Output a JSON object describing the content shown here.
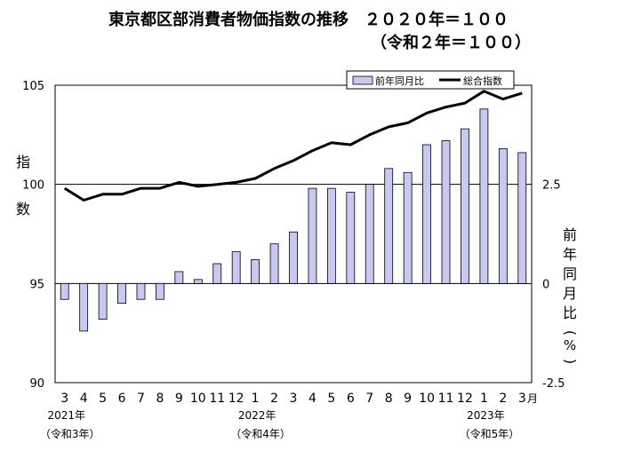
{
  "title": "東京都区部消費者物価指数の推移　２０２０年＝１００",
  "subtitle": "（令和２年＝１００）",
  "legend": {
    "bar_label": "前年同月比",
    "line_label": "総合指数",
    "bar_color": "#c8c8f0",
    "line_color": "#000000"
  },
  "left_axis_label": "指数",
  "right_axis_label": "前年同月比（%）",
  "month_unit": "月",
  "year_labels": [
    {
      "year": "2021年",
      "era": "（令和3年）"
    },
    {
      "year": "2022年",
      "era": "（令和4年）"
    },
    {
      "year": "2023年",
      "era": "（令和5年）"
    }
  ],
  "chart_data": {
    "type": "bar+line",
    "categories": [
      "3",
      "4",
      "5",
      "6",
      "7",
      "8",
      "9",
      "10",
      "11",
      "12",
      "1",
      "2",
      "3",
      "4",
      "5",
      "6",
      "7",
      "8",
      "9",
      "10",
      "11",
      "12",
      "1",
      "2",
      "3"
    ],
    "left_axis": {
      "min": 90,
      "max": 105,
      "ticks": [
        "90",
        "95",
        "100",
        "105"
      ]
    },
    "right_axis": {
      "min": -2.5,
      "max": 5.0,
      "ticks": [
        "-2.5",
        "0",
        "2.5"
      ]
    },
    "series": [
      {
        "name": "前年同月比",
        "type": "bar",
        "axis": "right",
        "values": [
          -0.4,
          -1.2,
          -0.9,
          -0.5,
          -0.4,
          -0.4,
          0.3,
          0.1,
          0.5,
          0.8,
          0.6,
          1.0,
          1.3,
          2.4,
          2.4,
          2.3,
          2.5,
          2.9,
          2.8,
          3.5,
          3.6,
          3.9,
          4.4,
          3.4,
          3.3
        ]
      },
      {
        "name": "総合指数",
        "type": "line",
        "axis": "left",
        "values": [
          99.8,
          99.2,
          99.5,
          99.5,
          99.8,
          99.8,
          100.1,
          99.9,
          100.0,
          100.1,
          100.3,
          100.8,
          101.2,
          101.7,
          102.1,
          102.0,
          102.5,
          102.9,
          103.1,
          103.6,
          103.9,
          104.1,
          104.7,
          104.3,
          104.6
        ]
      }
    ],
    "zero_line_on_right_axis": 0,
    "reference_line_left_axis": 100,
    "grid": false
  }
}
